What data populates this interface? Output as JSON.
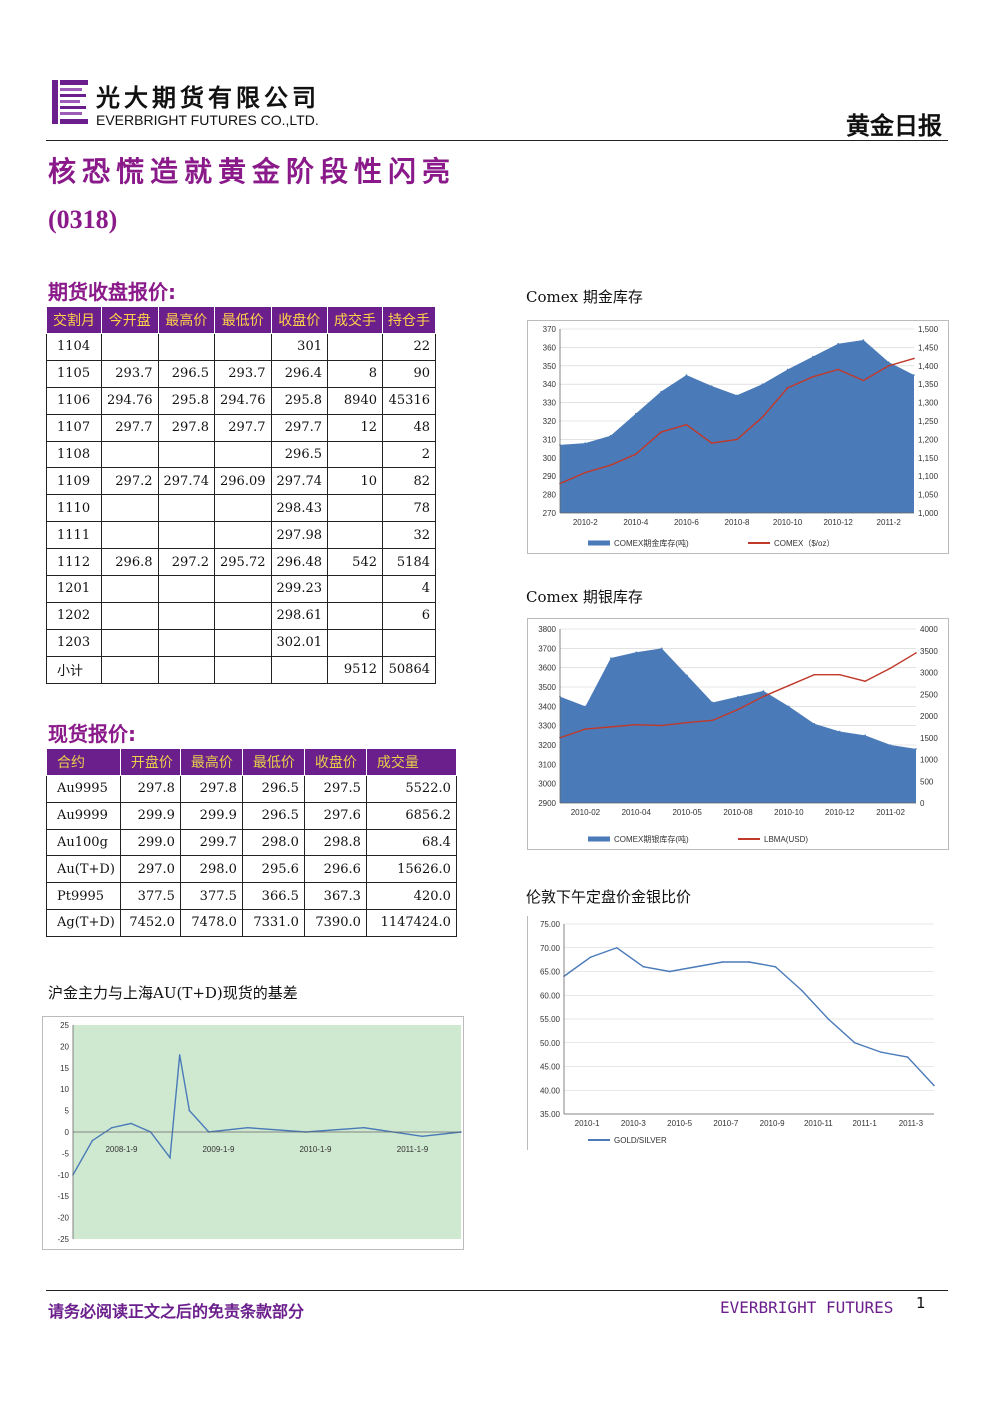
{
  "header": {
    "brand_cn": "光大期货有限公司",
    "brand_en": "EVERBRIGHT FUTURES CO.,LTD.",
    "report_type": "黄金日报"
  },
  "title": "核恐慌造就黄金阶段性闪亮",
  "date": "(0318)",
  "futures": {
    "section_title": "期货收盘报价:",
    "columns": [
      "交割月",
      "今开盘",
      "最高价",
      "最低价",
      "收盘价",
      "成交手",
      "持仓手"
    ],
    "rows": [
      [
        "1104",
        "",
        "",
        "",
        "301",
        "",
        "22"
      ],
      [
        "1105",
        "293.7",
        "296.5",
        "293.7",
        "296.4",
        "8",
        "90"
      ],
      [
        "1106",
        "294.76",
        "295.8",
        "294.76",
        "295.8",
        "8940",
        "45316"
      ],
      [
        "1107",
        "297.7",
        "297.8",
        "297.7",
        "297.7",
        "12",
        "48"
      ],
      [
        "1108",
        "",
        "",
        "",
        "296.5",
        "",
        "2"
      ],
      [
        "1109",
        "297.2",
        "297.74",
        "296.09",
        "297.74",
        "10",
        "82"
      ],
      [
        "1110",
        "",
        "",
        "",
        "298.43",
        "",
        "78"
      ],
      [
        "1111",
        "",
        "",
        "",
        "297.98",
        "",
        "32"
      ],
      [
        "1112",
        "296.8",
        "297.2",
        "295.72",
        "296.48",
        "542",
        "5184"
      ],
      [
        "1201",
        "",
        "",
        "",
        "299.23",
        "",
        "4"
      ],
      [
        "1202",
        "",
        "",
        "",
        "298.61",
        "",
        "6"
      ],
      [
        "1203",
        "",
        "",
        "",
        "302.01",
        "",
        ""
      ],
      [
        "小计",
        "",
        "",
        "",
        "",
        "9512",
        "50864"
      ]
    ]
  },
  "spot": {
    "section_title": "现货报价:",
    "columns": [
      "合约",
      "开盘价",
      "最高价",
      "最低价",
      "收盘价",
      "成交量"
    ],
    "rows": [
      [
        "Au9995",
        "297.8",
        "297.8",
        "296.5",
        "297.5",
        "5522.0"
      ],
      [
        "Au9999",
        "299.9",
        "299.9",
        "296.5",
        "297.6",
        "6856.2"
      ],
      [
        "Au100g",
        "299.0",
        "299.7",
        "298.0",
        "298.8",
        "68.4"
      ],
      [
        "Au(T+D)",
        "297.0",
        "298.0",
        "295.6",
        "296.6",
        "15626.0"
      ],
      [
        "Pt9995",
        "377.5",
        "377.5",
        "366.5",
        "367.3",
        "420.0"
      ],
      [
        "Ag(T+D)",
        "7452.0",
        "7478.0",
        "7331.0",
        "7390.0",
        "1147424.0"
      ]
    ]
  },
  "chart_data": [
    {
      "type": "area",
      "title": "Comex 期金库存",
      "x_ticks": [
        "2010-2",
        "2010-4",
        "2010-6",
        "2010-8",
        "2010-10",
        "2010-12",
        "2011-2"
      ],
      "y_left_ticks": [
        "370",
        "360",
        "350",
        "340",
        "330",
        "320",
        "310",
        "300",
        "290",
        "280",
        "270"
      ],
      "y_right_ticks": [
        "1,500",
        "1,450",
        "1,400",
        "1,350",
        "1,300",
        "1,250",
        "1,200",
        "1,150",
        "1,100",
        "1,050",
        "1,000"
      ],
      "ylim_left": [
        270,
        370
      ],
      "ylim_right": [
        1000,
        1500
      ],
      "x_months": [
        0,
        1,
        2,
        3,
        4,
        5,
        6,
        7,
        8,
        9,
        10,
        11,
        12,
        13,
        14
      ],
      "series": [
        {
          "name": "COMEX期金库存(吨)",
          "color": "#4a7ab8",
          "values": [
            307,
            308,
            312,
            324,
            336,
            345,
            339,
            334,
            340,
            348,
            355,
            362,
            364,
            352,
            345
          ]
        },
        {
          "name": "COMEX（$/oz）",
          "color": "#c0392b",
          "values": [
            1080,
            1110,
            1130,
            1160,
            1220,
            1240,
            1190,
            1200,
            1260,
            1340,
            1370,
            1390,
            1360,
            1400,
            1420
          ]
        }
      ]
    },
    {
      "type": "area",
      "title": "Comex 期银库存",
      "x_ticks": [
        "2010-02",
        "2010-04",
        "2010-05",
        "2010-08",
        "2010-10",
        "2010-12",
        "2011-02"
      ],
      "y_left_ticks": [
        "3800",
        "3700",
        "3600",
        "3500",
        "3400",
        "3300",
        "3200",
        "3100",
        "3000",
        "2900"
      ],
      "y_right_ticks": [
        "4000",
        "3500",
        "3000",
        "2500",
        "2000",
        "1500",
        "1000",
        "500",
        "0"
      ],
      "ylim_left": [
        2900,
        3800
      ],
      "ylim_right": [
        0,
        4000
      ],
      "x_months": [
        0,
        1,
        2,
        3,
        4,
        5,
        6,
        7,
        8,
        9,
        10,
        11,
        12,
        13,
        14
      ],
      "series": [
        {
          "name": "COMEX期银库存(吨)",
          "color": "#4a7ab8",
          "values": [
            3450,
            3400,
            3650,
            3680,
            3700,
            3560,
            3420,
            3450,
            3480,
            3400,
            3310,
            3270,
            3250,
            3200,
            3180
          ]
        },
        {
          "name": "LBMA(USD)",
          "color": "#c0392b",
          "values": [
            1500,
            1700,
            1750,
            1800,
            1780,
            1850,
            1900,
            2150,
            2450,
            2700,
            2950,
            2950,
            2800,
            3100,
            3450
          ]
        }
      ]
    },
    {
      "type": "line",
      "title": "伦敦下午定盘价金银比价",
      "x_ticks": [
        "2010-1",
        "2010-3",
        "2010-5",
        "2010-7",
        "2010-9",
        "2010-11",
        "2011-1",
        "2011-3"
      ],
      "y_ticks": [
        "75.00",
        "70.00",
        "65.00",
        "60.00",
        "55.00",
        "50.00",
        "45.00",
        "40.00",
        "35.00"
      ],
      "ylim": [
        35,
        75
      ],
      "x_months": [
        0,
        1,
        2,
        3,
        4,
        5,
        6,
        7,
        8,
        9,
        10,
        11,
        12,
        13,
        14
      ],
      "series": [
        {
          "name": "GOLD/SILVER",
          "color": "#4a7ab8",
          "values": [
            64,
            68,
            70,
            66,
            65,
            66,
            67,
            67,
            66,
            61,
            55,
            50,
            48,
            47,
            41
          ]
        }
      ]
    },
    {
      "type": "line",
      "title": "沪金主力与上海AU(T+D)现货的基差",
      "x_ticks": [
        "2008-1-9",
        "2009-1-9",
        "2010-1-9",
        "2011-1-9"
      ],
      "y_ticks": [
        "25",
        "20",
        "15",
        "10",
        "5",
        "0",
        "-5",
        "-10",
        "-15",
        "-20",
        "-25"
      ],
      "ylim": [
        -25,
        25
      ],
      "x_months": [
        0,
        2,
        4,
        6,
        8,
        10,
        11,
        12,
        14,
        18,
        24,
        30,
        36,
        40
      ],
      "series": [
        {
          "name": "基差",
          "color": "#4a7ab8",
          "values": [
            -10,
            -2,
            1,
            2,
            0,
            -6,
            18,
            5,
            0,
            1,
            0,
            1,
            -1,
            0
          ]
        }
      ]
    }
  ],
  "footer": {
    "disclaimer": "请务必阅读正文之后的免责条款部分",
    "brand": "EVERBRIGHT FUTURES",
    "page": "1"
  }
}
